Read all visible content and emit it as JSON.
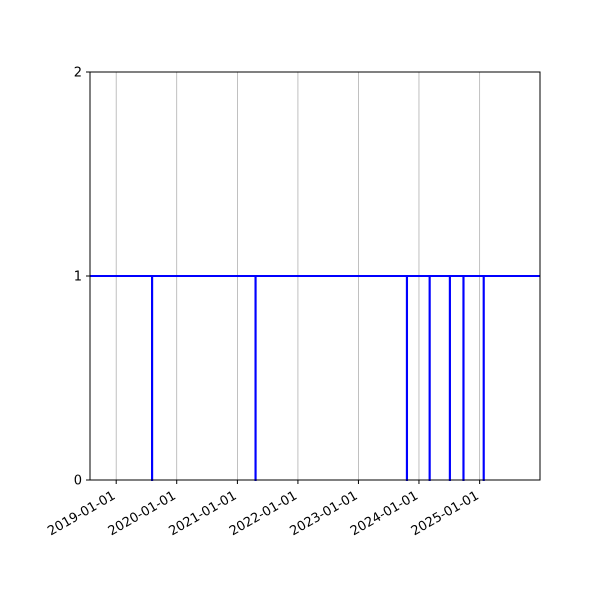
{
  "chart_data": {
    "type": "line",
    "title": "",
    "xlabel": "",
    "ylabel": "",
    "x_axis": {
      "scale": "date",
      "xlim": [
        "2018-07-27",
        "2025-12-31"
      ],
      "tick_labels": [
        "2019-01-01",
        "2020-01-01",
        "2021-01-01",
        "2022-01-01",
        "2023-01-01",
        "2024-01-01",
        "2025-01-01"
      ],
      "grid": true
    },
    "y_axis": {
      "ylim": [
        0,
        2
      ],
      "tick_labels": [
        "0",
        "1",
        "2"
      ],
      "grid": false
    },
    "legend": "none",
    "series": [
      {
        "color": "#0000ff",
        "step": "post",
        "points": [
          {
            "x": "2018-07-27",
            "y": 1
          },
          {
            "x": "2019-08-05",
            "y": 0
          },
          {
            "x": "2019-08-06",
            "y": 1
          },
          {
            "x": "2021-04-20",
            "y": 0
          },
          {
            "x": "2021-04-21",
            "y": 1
          },
          {
            "x": "2023-10-20",
            "y": 0
          },
          {
            "x": "2023-10-21",
            "y": 1
          },
          {
            "x": "2024-03-05",
            "y": 0
          },
          {
            "x": "2024-03-06",
            "y": 1
          },
          {
            "x": "2024-07-05",
            "y": 0
          },
          {
            "x": "2024-07-06",
            "y": 1
          },
          {
            "x": "2024-09-25",
            "y": 0
          },
          {
            "x": "2024-09-26",
            "y": 1
          },
          {
            "x": "2025-01-25",
            "y": 0
          },
          {
            "x": "2025-01-26",
            "y": 1
          },
          {
            "x": "2025-12-31",
            "y": 1
          }
        ]
      }
    ]
  }
}
